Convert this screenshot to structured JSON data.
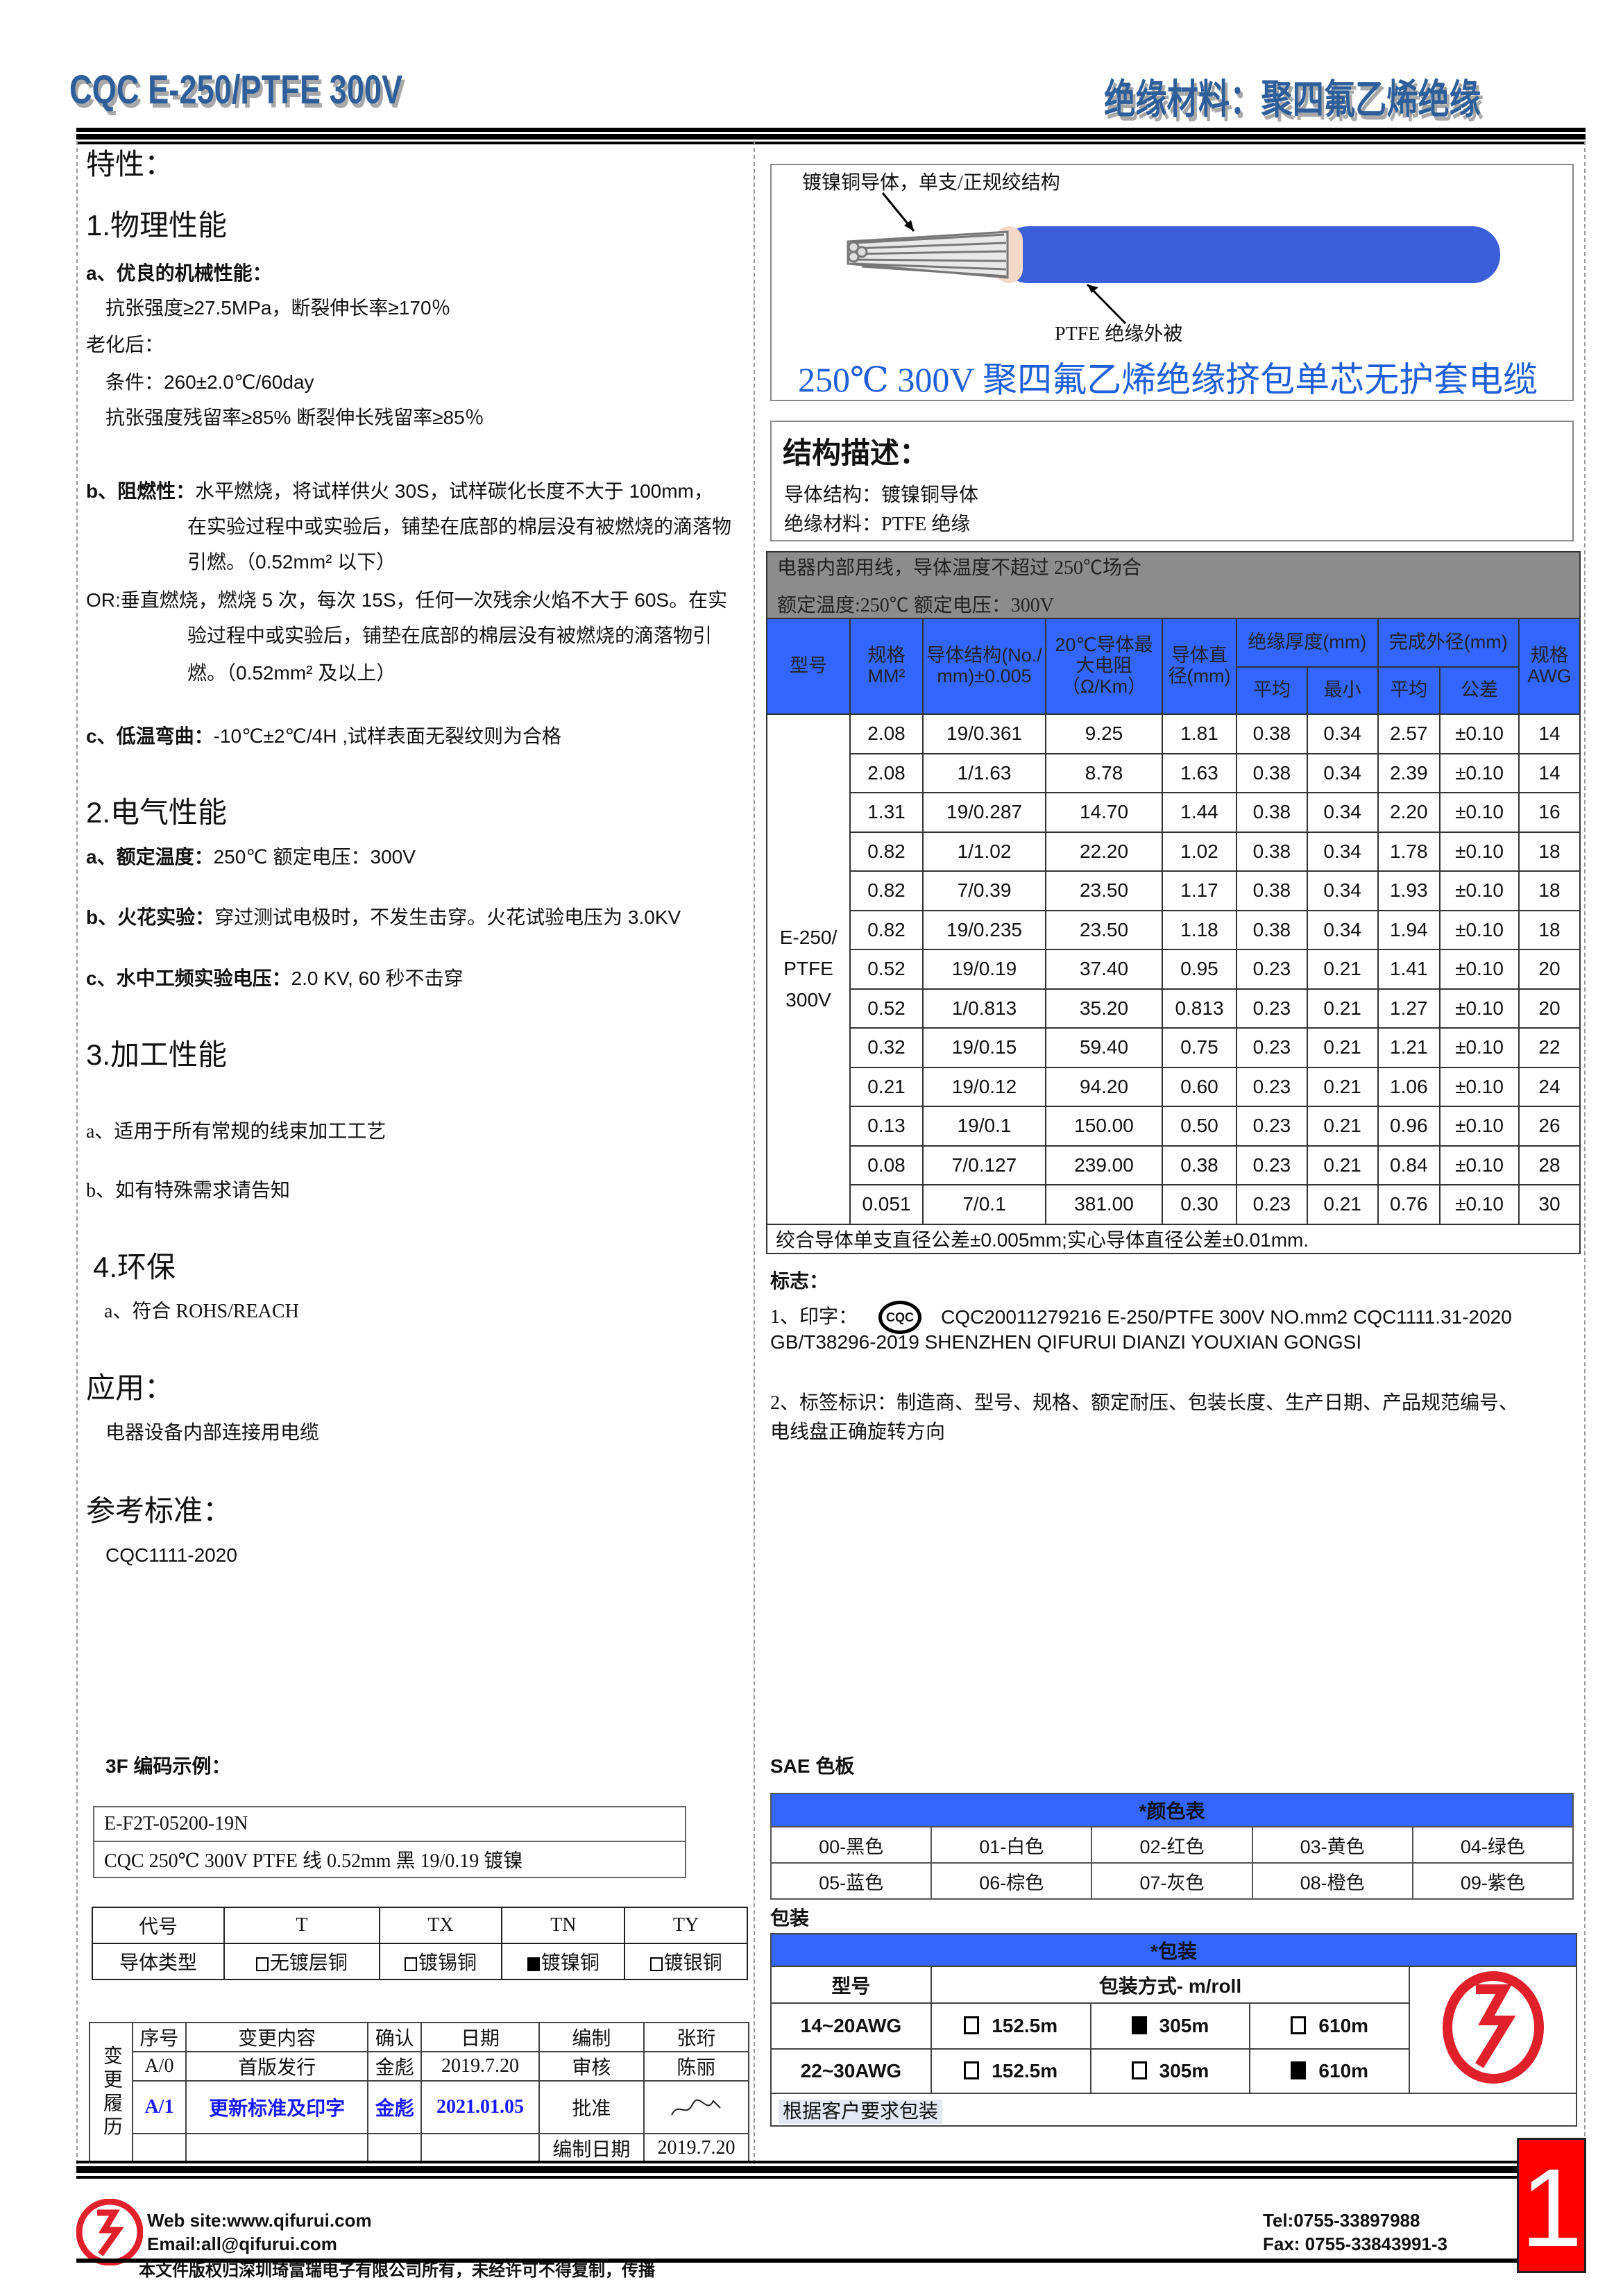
{
  "header": {
    "left_title": "CQC E-250/PTFE 300V",
    "right_title": "绝缘材料：聚四氟乙烯绝缘"
  },
  "left": {
    "features_title": "特性：",
    "physical": {
      "title": "1.物理性能",
      "a_title": "a、优良的机械性能：",
      "a_line1": "抗张强度≥27.5MPa，断裂伸长率≥170％",
      "aging": "老化后：",
      "cond": "条件：260±2.0℃/60day",
      "residual": "抗张强度残留率≥85% 断裂伸长残留率≥85％",
      "b_label": "b、阻燃性：",
      "b_line1": "水平燃烧，将试样供火 30S，试样碳化长度不大于 100mm，",
      "b_line2": "在实验过程中或实验后，铺垫在底部的棉层没有被燃烧的滴落物",
      "b_line3": "引燃。（0.52mm² 以下）",
      "or_line1": "OR:垂直燃烧，燃烧 5 次，每次 15S，任何一次残余火焰不大于 60S。在实",
      "or_line2": "验过程中或实验后，铺垫在底部的棉层没有被燃烧的滴落物引",
      "or_line3": "燃。（0.52mm² 及以上）",
      "c_label": "c、低温弯曲：",
      "c_text": "-10℃±2℃/4H ,试样表面无裂纹则为合格"
    },
    "electrical": {
      "title": "2.电气性能",
      "a_label": "a、额定温度：",
      "a_text": "250℃    额定电压：300V",
      "b_label": "b、火花实验：",
      "b_text": "穿过测试电极时，不发生击穿。火花试验电压为 3.0KV",
      "c_label": "c、水中工频实验电压：",
      "c_text": "2.0 KV, 60 秒不击穿"
    },
    "processing": {
      "title": "3.加工性能",
      "a": "a、适用于所有常规的线束加工工艺",
      "b": "b、如有特殊需求请告知"
    },
    "env": {
      "title": "4.环保",
      "a": "a、符合 ROHS/REACH"
    },
    "application": {
      "title": "应用：",
      "text": "电器设备内部连接用电缆"
    },
    "standard": {
      "title": "参考标准：",
      "text": "CQC1111-2020"
    },
    "code_example": {
      "title": "3F 编码示例：",
      "line1": "E-F2T-05200-19N",
      "line2": "CQC 250℃  300V PTFE 线  0.52mm  黑 19/0.19 镀镍"
    },
    "code_table": {
      "headers": [
        "代号",
        "T",
        "TX",
        "TN",
        "TY"
      ],
      "row_label": "导体类型",
      "options": [
        {
          "label": "无镀层铜",
          "checked": false
        },
        {
          "label": "镀锡铜",
          "checked": false
        },
        {
          "label": "镀镍铜",
          "checked": true
        },
        {
          "label": "镀银铜",
          "checked": false
        }
      ]
    },
    "change_history": {
      "side_label": "变更履历",
      "headers": [
        "序号",
        "变更内容",
        "确认",
        "日期"
      ],
      "rows": [
        [
          "A/0",
          "首版发行",
          "金彪",
          "2019.7.20"
        ],
        [
          "A/1",
          "更新标准及印字",
          "金彪",
          "2021.01.05"
        ]
      ],
      "roles": [
        [
          "编制",
          "张珩"
        ],
        [
          "审核",
          "陈丽"
        ],
        [
          "批准",
          ""
        ],
        [
          "编制日期",
          "2019.7.20"
        ]
      ],
      "highlight_color": "#1a1aff"
    }
  },
  "right": {
    "cable": {
      "conductor_label": "镀镍铜导体，单支/正规绞结构",
      "insulation_label": "PTFE 绝缘外被",
      "title": "250℃  300V 聚四氟乙烯绝缘挤包单芯无护套电缆",
      "jacket_color": "#3a5fd8",
      "title_color": "#1f5fd8"
    },
    "structure": {
      "title": "结构描述：",
      "conductor": "导体结构：镀镍铜导体",
      "insulation": "绝缘材料：PTFE 绝缘"
    },
    "spec": {
      "note1": "电器内部用线，导体温度不超过 250℃场合",
      "note2": "额定温度:250℃  额定电压：300V",
      "headers": {
        "model": "型号",
        "size": "规格MM²",
        "conductor": "导体结构(No./ mm)±0.005",
        "resistance": "20℃导体最大电阻（Ω/Km）",
        "diameter": "导体直径(mm)",
        "ins": "绝缘厚度(mm)",
        "od": "完成外径(mm)",
        "avg": "平均",
        "min": "最小",
        "avg2": "平均",
        "tol": "公差",
        "awg": "规格AWG"
      },
      "model": "E-250/ PTFE 300V",
      "rows": [
        [
          "2.08",
          "19/0.361",
          "9.25",
          "1.81",
          "0.38",
          "0.34",
          "2.57",
          "±0.10",
          "14"
        ],
        [
          "2.08",
          "1/1.63",
          "8.78",
          "1.63",
          "0.38",
          "0.34",
          "2.39",
          "±0.10",
          "14"
        ],
        [
          "1.31",
          "19/0.287",
          "14.70",
          "1.44",
          "0.38",
          "0.34",
          "2.20",
          "±0.10",
          "16"
        ],
        [
          "0.82",
          "1/1.02",
          "22.20",
          "1.02",
          "0.38",
          "0.34",
          "1.78",
          "±0.10",
          "18"
        ],
        [
          "0.82",
          "7/0.39",
          "23.50",
          "1.17",
          "0.38",
          "0.34",
          "1.93",
          "±0.10",
          "18"
        ],
        [
          "0.82",
          "19/0.235",
          "23.50",
          "1.18",
          "0.38",
          "0.34",
          "1.94",
          "±0.10",
          "18"
        ],
        [
          "0.52",
          "19/0.19",
          "37.40",
          "0.95",
          "0.23",
          "0.21",
          "1.41",
          "±0.10",
          "20"
        ],
        [
          "0.52",
          "1/0.813",
          "35.20",
          "0.813",
          "0.23",
          "0.21",
          "1.27",
          "±0.10",
          "20"
        ],
        [
          "0.32",
          "19/0.15",
          "59.40",
          "0.75",
          "0.23",
          "0.21",
          "1.21",
          "±0.10",
          "22"
        ],
        [
          "0.21",
          "19/0.12",
          "94.20",
          "0.60",
          "0.23",
          "0.21",
          "1.06",
          "±0.10",
          "24"
        ],
        [
          "0.13",
          "19/0.1",
          "150.00",
          "0.50",
          "0.23",
          "0.21",
          "0.96",
          "±0.10",
          "26"
        ],
        [
          "0.08",
          "7/0.127",
          "239.00",
          "0.38",
          "0.23",
          "0.21",
          "0.84",
          "±0.10",
          "28"
        ],
        [
          "0.051",
          "7/0.1",
          "381.00",
          "0.30",
          "0.23",
          "0.21",
          "0.76",
          "±0.10",
          "30"
        ]
      ],
      "footnote": "绞合导体单支直径公差±0.005mm;实心导体直径公差±0.01mm.",
      "header_gray": "#8c8c8c",
      "header_blue": "#3366ff"
    },
    "marking": {
      "title": "标志：",
      "print_label": "1、印字：",
      "cqc_logo": "CQC",
      "print_line1": "CQC20011279216  E-250/PTFE  300V  NO.mm2  CQC1111.31-2020",
      "print_line2": "GB/T38296-2019 SHENZHEN QIFURUI DIANZI YOUXIAN GONGSI",
      "label_line1": "2、标签标识：制造商、型号、规格、额定耐压、包装长度、生产日期、产品规范编号、",
      "label_line2": "电线盘正确旋转方向"
    },
    "sae": {
      "title": "SAE 色板",
      "table_title": "*颜色表",
      "colors": [
        [
          "00-黑色",
          "01-白色",
          "02-红色",
          "03-黄色",
          "04-绿色"
        ],
        [
          "05-蓝色",
          "06-棕色",
          "07-灰色",
          "08-橙色",
          "09-紫色"
        ]
      ]
    },
    "packaging": {
      "title": "包装",
      "table_title": "*包装",
      "col_model": "型号",
      "col_method": "包装方式- m/roll",
      "rows": [
        {
          "model": "14~20AWG",
          "options": [
            {
              "label": "152.5m",
              "checked": false
            },
            {
              "label": "305m",
              "checked": true
            },
            {
              "label": "610m",
              "checked": false
            }
          ]
        },
        {
          "model": "22~30AWG",
          "options": [
            {
              "label": "152.5m",
              "checked": false
            },
            {
              "label": "305m",
              "checked": false
            },
            {
              "label": "610m",
              "checked": true
            }
          ]
        }
      ],
      "note": "根据客户要求包装"
    }
  },
  "footer": {
    "website": "Web site:www.qifurui.com",
    "email": "Email:all@qifurui.com",
    "tel": "Tel:0755-33897988",
    "fax": "Fax: 0755-33843991-3",
    "copyright": "本文件版权归深圳琦富瑞电子有限公司所有，未经许可不得复制，传播",
    "page_number": "1",
    "brand_color": "#e0202a"
  }
}
